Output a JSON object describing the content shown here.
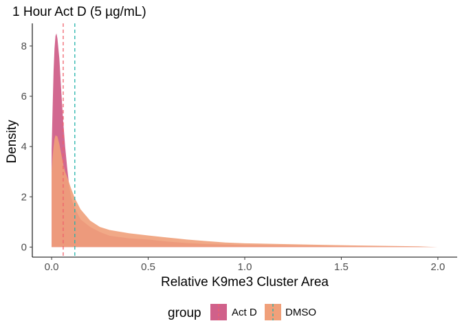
{
  "chart_data": {
    "type": "area",
    "subtype": "density",
    "title": "1 Hour Act D (5 µg/mL)",
    "xlabel": "Relative K9me3 Cluster Area",
    "ylabel": "Density",
    "xlim": [
      -0.1,
      2.1
    ],
    "ylim": [
      -0.4,
      8.9
    ],
    "x_ticks": [
      "0.0",
      "0.5",
      "1.0",
      "1.5",
      "2.0"
    ],
    "y_ticks": [
      "0",
      "2",
      "4",
      "6",
      "8"
    ],
    "grid": false,
    "legend": {
      "title": "group",
      "position": "bottom",
      "entries": [
        "Act D",
        "DMSO"
      ]
    },
    "series": [
      {
        "name": "Act D",
        "fill": "#d0608a",
        "line": "#f0606a",
        "mean_line": 0.06,
        "points": [
          [
            0.0,
            3.9
          ],
          [
            0.005,
            5.5
          ],
          [
            0.01,
            7.0
          ],
          [
            0.015,
            7.9
          ],
          [
            0.02,
            8.4
          ],
          [
            0.025,
            8.5
          ],
          [
            0.03,
            8.3
          ],
          [
            0.04,
            7.5
          ],
          [
            0.05,
            6.2
          ],
          [
            0.06,
            5.0
          ],
          [
            0.07,
            4.0
          ],
          [
            0.08,
            3.2
          ],
          [
            0.09,
            2.5
          ],
          [
            0.1,
            2.0
          ],
          [
            0.12,
            1.55
          ],
          [
            0.15,
            1.1
          ],
          [
            0.2,
            0.8
          ],
          [
            0.25,
            0.6
          ],
          [
            0.3,
            0.45
          ],
          [
            0.4,
            0.35
          ],
          [
            0.5,
            0.3
          ],
          [
            0.6,
            0.22
          ],
          [
            0.7,
            0.16
          ],
          [
            0.8,
            0.12
          ],
          [
            1.0,
            0.08
          ],
          [
            1.2,
            0.06
          ],
          [
            1.5,
            0.03
          ],
          [
            1.8,
            0.02
          ],
          [
            2.0,
            0.0
          ]
        ]
      },
      {
        "name": "DMSO",
        "fill": "#f0a07a",
        "line": "#20b2aa",
        "mean_line": 0.12,
        "points": [
          [
            0.0,
            3.0
          ],
          [
            0.005,
            3.6
          ],
          [
            0.01,
            4.0
          ],
          [
            0.015,
            4.3
          ],
          [
            0.02,
            4.45
          ],
          [
            0.03,
            4.4
          ],
          [
            0.04,
            4.1
          ],
          [
            0.05,
            3.7
          ],
          [
            0.06,
            3.3
          ],
          [
            0.07,
            3.0
          ],
          [
            0.08,
            2.8
          ],
          [
            0.1,
            2.35
          ],
          [
            0.12,
            1.95
          ],
          [
            0.15,
            1.5
          ],
          [
            0.2,
            1.05
          ],
          [
            0.25,
            0.8
          ],
          [
            0.3,
            0.68
          ],
          [
            0.4,
            0.55
          ],
          [
            0.5,
            0.46
          ],
          [
            0.6,
            0.38
          ],
          [
            0.7,
            0.3
          ],
          [
            0.8,
            0.24
          ],
          [
            0.9,
            0.18
          ],
          [
            1.0,
            0.15
          ],
          [
            1.2,
            0.12
          ],
          [
            1.4,
            0.09
          ],
          [
            1.6,
            0.06
          ],
          [
            1.8,
            0.04
          ],
          [
            1.9,
            0.03
          ],
          [
            2.0,
            0.0
          ]
        ]
      }
    ]
  }
}
